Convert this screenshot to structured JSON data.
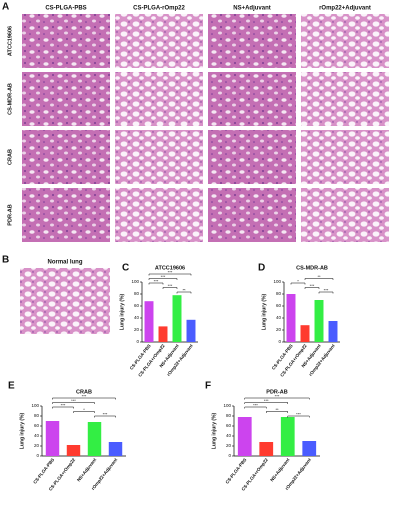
{
  "figure": {
    "panel_labels": [
      "A",
      "B",
      "C",
      "D",
      "E",
      "F"
    ],
    "columns": [
      "CS-PLGA-PBS",
      "CS-PLGA-rOmp22",
      "NS+Adjuvant",
      "rOmp22+Adjuvant"
    ],
    "rows": [
      "ATCC19606",
      "CS-MDR-AB",
      "CRAB",
      "PDR-AB"
    ],
    "normal": "Normal lung"
  },
  "chart_data": [
    {
      "type": "bar",
      "title": "ATCC19606",
      "y_label": "Lung injury (%)",
      "categories": [
        "CS-PLGA-PBS",
        "CS-PLGA+rOmp22",
        "NS+Adjuvant",
        "rOmp22+Adjuvant"
      ],
      "colors": [
        "#cc44ee",
        "#ff3b2f",
        "#33ee44",
        "#4a5cff"
      ],
      "values": [
        68,
        26,
        78,
        37
      ],
      "ylim": [
        0,
        100
      ],
      "yticks": [
        0,
        20,
        40,
        60,
        80,
        100
      ],
      "annotations": [
        "***",
        "***",
        "***",
        "***",
        "**"
      ]
    },
    {
      "type": "bar",
      "title": "CS-MDR-AB",
      "y_label": "Lung injury (%)",
      "categories": [
        "CS-PLGA-PBS",
        "CS-PLGA+rOmp22",
        "NS+Adjuvant",
        "rOmp22+Adjuvant"
      ],
      "colors": [
        "#cc44ee",
        "#ff3b2f",
        "#33ee44",
        "#4a5cff"
      ],
      "values": [
        80,
        28,
        70,
        35
      ],
      "ylim": [
        0,
        100
      ],
      "yticks": [
        0,
        20,
        40,
        60,
        80,
        100
      ],
      "annotations": [
        "**",
        "*",
        "***",
        "***"
      ]
    },
    {
      "type": "bar",
      "title": "CRAB",
      "y_label": "Lung injury (%)",
      "categories": [
        "CS-PLGA-PBS",
        "CS-PLGA+rOmp22",
        "NS+Adjuvant",
        "rOmp22+Adjuvant"
      ],
      "colors": [
        "#cc44ee",
        "#ff3b2f",
        "#33ee44",
        "#4a5cff"
      ],
      "values": [
        70,
        22,
        68,
        28
      ],
      "ylim": [
        0,
        100
      ],
      "yticks": [
        0,
        20,
        40,
        60,
        80,
        100
      ],
      "annotations": [
        "***",
        "***",
        "***",
        "*",
        "***"
      ]
    },
    {
      "type": "bar",
      "title": "PDR-AB",
      "y_label": "Lung injury (%)",
      "categories": [
        "CS-PLGA-PBS",
        "CS-PLGA+rOmp22",
        "NS+Adjuvant",
        "rOmp22+Adjuvant"
      ],
      "colors": [
        "#cc44ee",
        "#ff3b2f",
        "#33ee44",
        "#4a5cff"
      ],
      "values": [
        78,
        28,
        78,
        30
      ],
      "ylim": [
        0,
        100
      ],
      "yticks": [
        0,
        20,
        40,
        60,
        80,
        100
      ],
      "annotations": [
        "***",
        "***",
        "***",
        "**",
        "***"
      ]
    }
  ]
}
